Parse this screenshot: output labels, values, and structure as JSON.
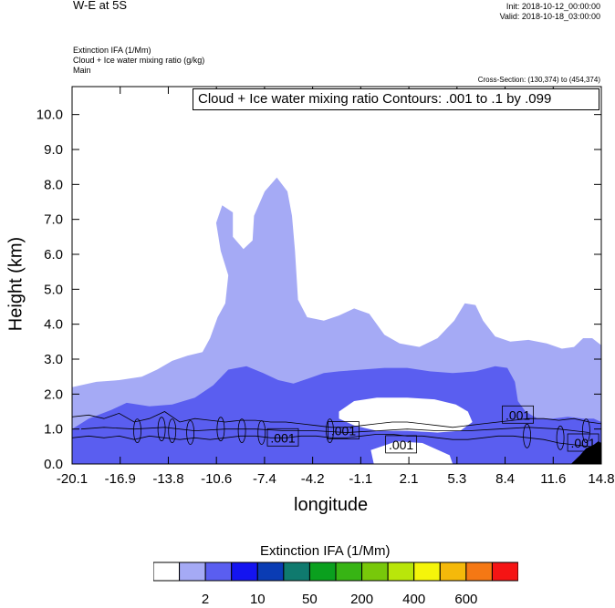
{
  "header": {
    "title": "W-E at 5S",
    "init": "Init: 2018-10-12_00:00:00",
    "valid": "Valid: 2018-10-18_03:00:00"
  },
  "fields": {
    "line1": "Extinction IFA   (1/Mm)",
    "line2": "Cloud + Ice water mixing ratio   (g/kg)",
    "line3": "Main"
  },
  "cross_section": "Cross-Section: (130,374) to (454,374)",
  "contour_label": "Cloud + Ice water mixing ratio Contours: .001 to .1 by .099",
  "colorbar": {
    "title": "Extinction IFA  (1/Mm)",
    "colors": [
      "#ffffff",
      "#a5aaf5",
      "#5a5ef0",
      "#1414f0",
      "#0a3cb4",
      "#0f7a6e",
      "#0aa01e",
      "#37b414",
      "#78c80a",
      "#b9e60a",
      "#f5f50a",
      "#f5b90a",
      "#f57814",
      "#f51414"
    ],
    "tick_labels": [
      "2",
      "10",
      "50",
      "200",
      "400",
      "600"
    ]
  },
  "chart_data": {
    "type": "heatmap",
    "title": "Cloud + Ice water mixing ratio Contours: .001 to .1 by .099",
    "xlabel": "longitude",
    "ylabel": "Height (km)",
    "x_ticks": [
      "-20.1",
      "-16.9",
      "-13.8",
      "-10.6",
      "-7.4",
      "-4.2",
      "-1.1",
      "2.1",
      "5.3",
      "8.4",
      "11.6",
      "14.8"
    ],
    "y_ticks": [
      "0.0",
      "1.0",
      "2.0",
      "3.0",
      "4.0",
      "5.0",
      "6.0",
      "7.0",
      "8.0",
      "9.0",
      "10.0"
    ],
    "xlim": [
      -20.1,
      14.8
    ],
    "ylim": [
      0,
      10.8
    ],
    "contour_labels": [
      ".001",
      ".001",
      ".001",
      ".001",
      ".001"
    ],
    "series": [
      {
        "level": "2",
        "polygons": [
          [
            [
              -20.1,
              0
            ],
            [
              -20.1,
              2.2
            ],
            [
              -18.5,
              2.35
            ],
            [
              -17,
              2.4
            ],
            [
              -15.5,
              2.5
            ],
            [
              -14.5,
              2.7
            ],
            [
              -13.5,
              2.95
            ],
            [
              -12.5,
              3.1
            ],
            [
              -11.5,
              3.2
            ],
            [
              -11,
              3.6
            ],
            [
              -10.5,
              4.2
            ],
            [
              -10,
              4.6
            ],
            [
              -9.8,
              5.4
            ],
            [
              -10.3,
              6.1
            ],
            [
              -10.6,
              6.9
            ],
            [
              -10.2,
              7.4
            ],
            [
              -9.5,
              7.2
            ],
            [
              -9.5,
              6.5
            ],
            [
              -8.8,
              6.15
            ],
            [
              -8.2,
              6.4
            ],
            [
              -8.1,
              7.1
            ],
            [
              -7.4,
              7.8
            ],
            [
              -6.6,
              8.2
            ],
            [
              -5.9,
              7.8
            ],
            [
              -5.6,
              7.1
            ],
            [
              -5.4,
              6.1
            ],
            [
              -5.2,
              4.7
            ],
            [
              -4.6,
              4.2
            ],
            [
              -3.5,
              4.1
            ],
            [
              -2.5,
              4.25
            ],
            [
              -1.5,
              4.45
            ],
            [
              -0.5,
              4.3
            ],
            [
              0.5,
              3.7
            ],
            [
              1.5,
              3.45
            ],
            [
              2.8,
              3.35
            ],
            [
              4,
              3.6
            ],
            [
              5.1,
              4.1
            ],
            [
              5.8,
              4.6
            ],
            [
              6.5,
              4.55
            ],
            [
              7,
              4.1
            ],
            [
              7.8,
              3.65
            ],
            [
              8.8,
              3.5
            ],
            [
              10,
              3.55
            ],
            [
              11.2,
              3.45
            ],
            [
              12.2,
              3.3
            ],
            [
              13,
              3.35
            ],
            [
              13.6,
              3.6
            ],
            [
              14.2,
              3.6
            ],
            [
              14.8,
              3.4
            ],
            [
              14.8,
              0
            ]
          ]
        ]
      },
      {
        "level": "10",
        "polygons": [
          [
            [
              -20.1,
              0
            ],
            [
              -20.1,
              1.0
            ],
            [
              -19,
              1.3
            ],
            [
              -17.5,
              1.55
            ],
            [
              -16.5,
              1.75
            ],
            [
              -15,
              1.65
            ],
            [
              -13.5,
              1.7
            ],
            [
              -12,
              1.9
            ],
            [
              -10.8,
              2.25
            ],
            [
              -9.8,
              2.7
            ],
            [
              -8.6,
              2.8
            ],
            [
              -7.5,
              2.6
            ],
            [
              -6.5,
              2.4
            ],
            [
              -5.5,
              2.3
            ],
            [
              -4.5,
              2.45
            ],
            [
              -3.5,
              2.6
            ],
            [
              -2.5,
              2.65
            ],
            [
              -1,
              2.7
            ],
            [
              0.5,
              2.75
            ],
            [
              2,
              2.75
            ],
            [
              3.5,
              2.65
            ],
            [
              5,
              2.6
            ],
            [
              6.5,
              2.65
            ],
            [
              7.8,
              2.8
            ],
            [
              8.6,
              2.75
            ],
            [
              9.1,
              2.35
            ],
            [
              9.3,
              1.8
            ],
            [
              9.8,
              1.5
            ],
            [
              10.6,
              1.3
            ],
            [
              11.6,
              1.3
            ],
            [
              12.6,
              1.35
            ],
            [
              13.6,
              1.3
            ],
            [
              14.3,
              1.3
            ],
            [
              14.8,
              1.2
            ],
            [
              14.8,
              0
            ]
          ],
          [
            [
              -0.6,
              0
            ],
            [
              -0.6,
              0.55
            ],
            [
              1,
              0.9
            ],
            [
              3,
              0.85
            ],
            [
              5.2,
              0.5
            ],
            [
              5.5,
              0
            ],
            [
              -0.6,
              0
            ]
          ]
        ]
      },
      {
        "level": "white",
        "polygons": [
          [
            [
              -2.5,
              1.5
            ],
            [
              -1.5,
              1.8
            ],
            [
              0,
              1.9
            ],
            [
              2,
              1.9
            ],
            [
              3.8,
              1.85
            ],
            [
              5.2,
              1.7
            ],
            [
              6,
              1.5
            ],
            [
              6.3,
              1.2
            ],
            [
              5.5,
              0.95
            ],
            [
              4,
              0.9
            ],
            [
              2,
              0.95
            ],
            [
              0,
              0.95
            ],
            [
              -1.5,
              1.1
            ],
            [
              -2.5,
              1.3
            ]
          ],
          [
            [
              -0.4,
              0.4
            ],
            [
              1.3,
              0.65
            ],
            [
              3,
              0.6
            ],
            [
              4.8,
              0.25
            ],
            [
              5,
              0
            ],
            [
              -0.2,
              0
            ],
            [
              -0.4,
              0.4
            ]
          ]
        ]
      },
      {
        "level": "600",
        "polygons": [
          [
            [
              12.8,
              0
            ],
            [
              13.4,
              0.25
            ],
            [
              13.8,
              0.45
            ],
            [
              14.3,
              0.55
            ],
            [
              14.6,
              0.65
            ],
            [
              14.8,
              0.6
            ],
            [
              14.8,
              0
            ]
          ]
        ]
      }
    ]
  }
}
